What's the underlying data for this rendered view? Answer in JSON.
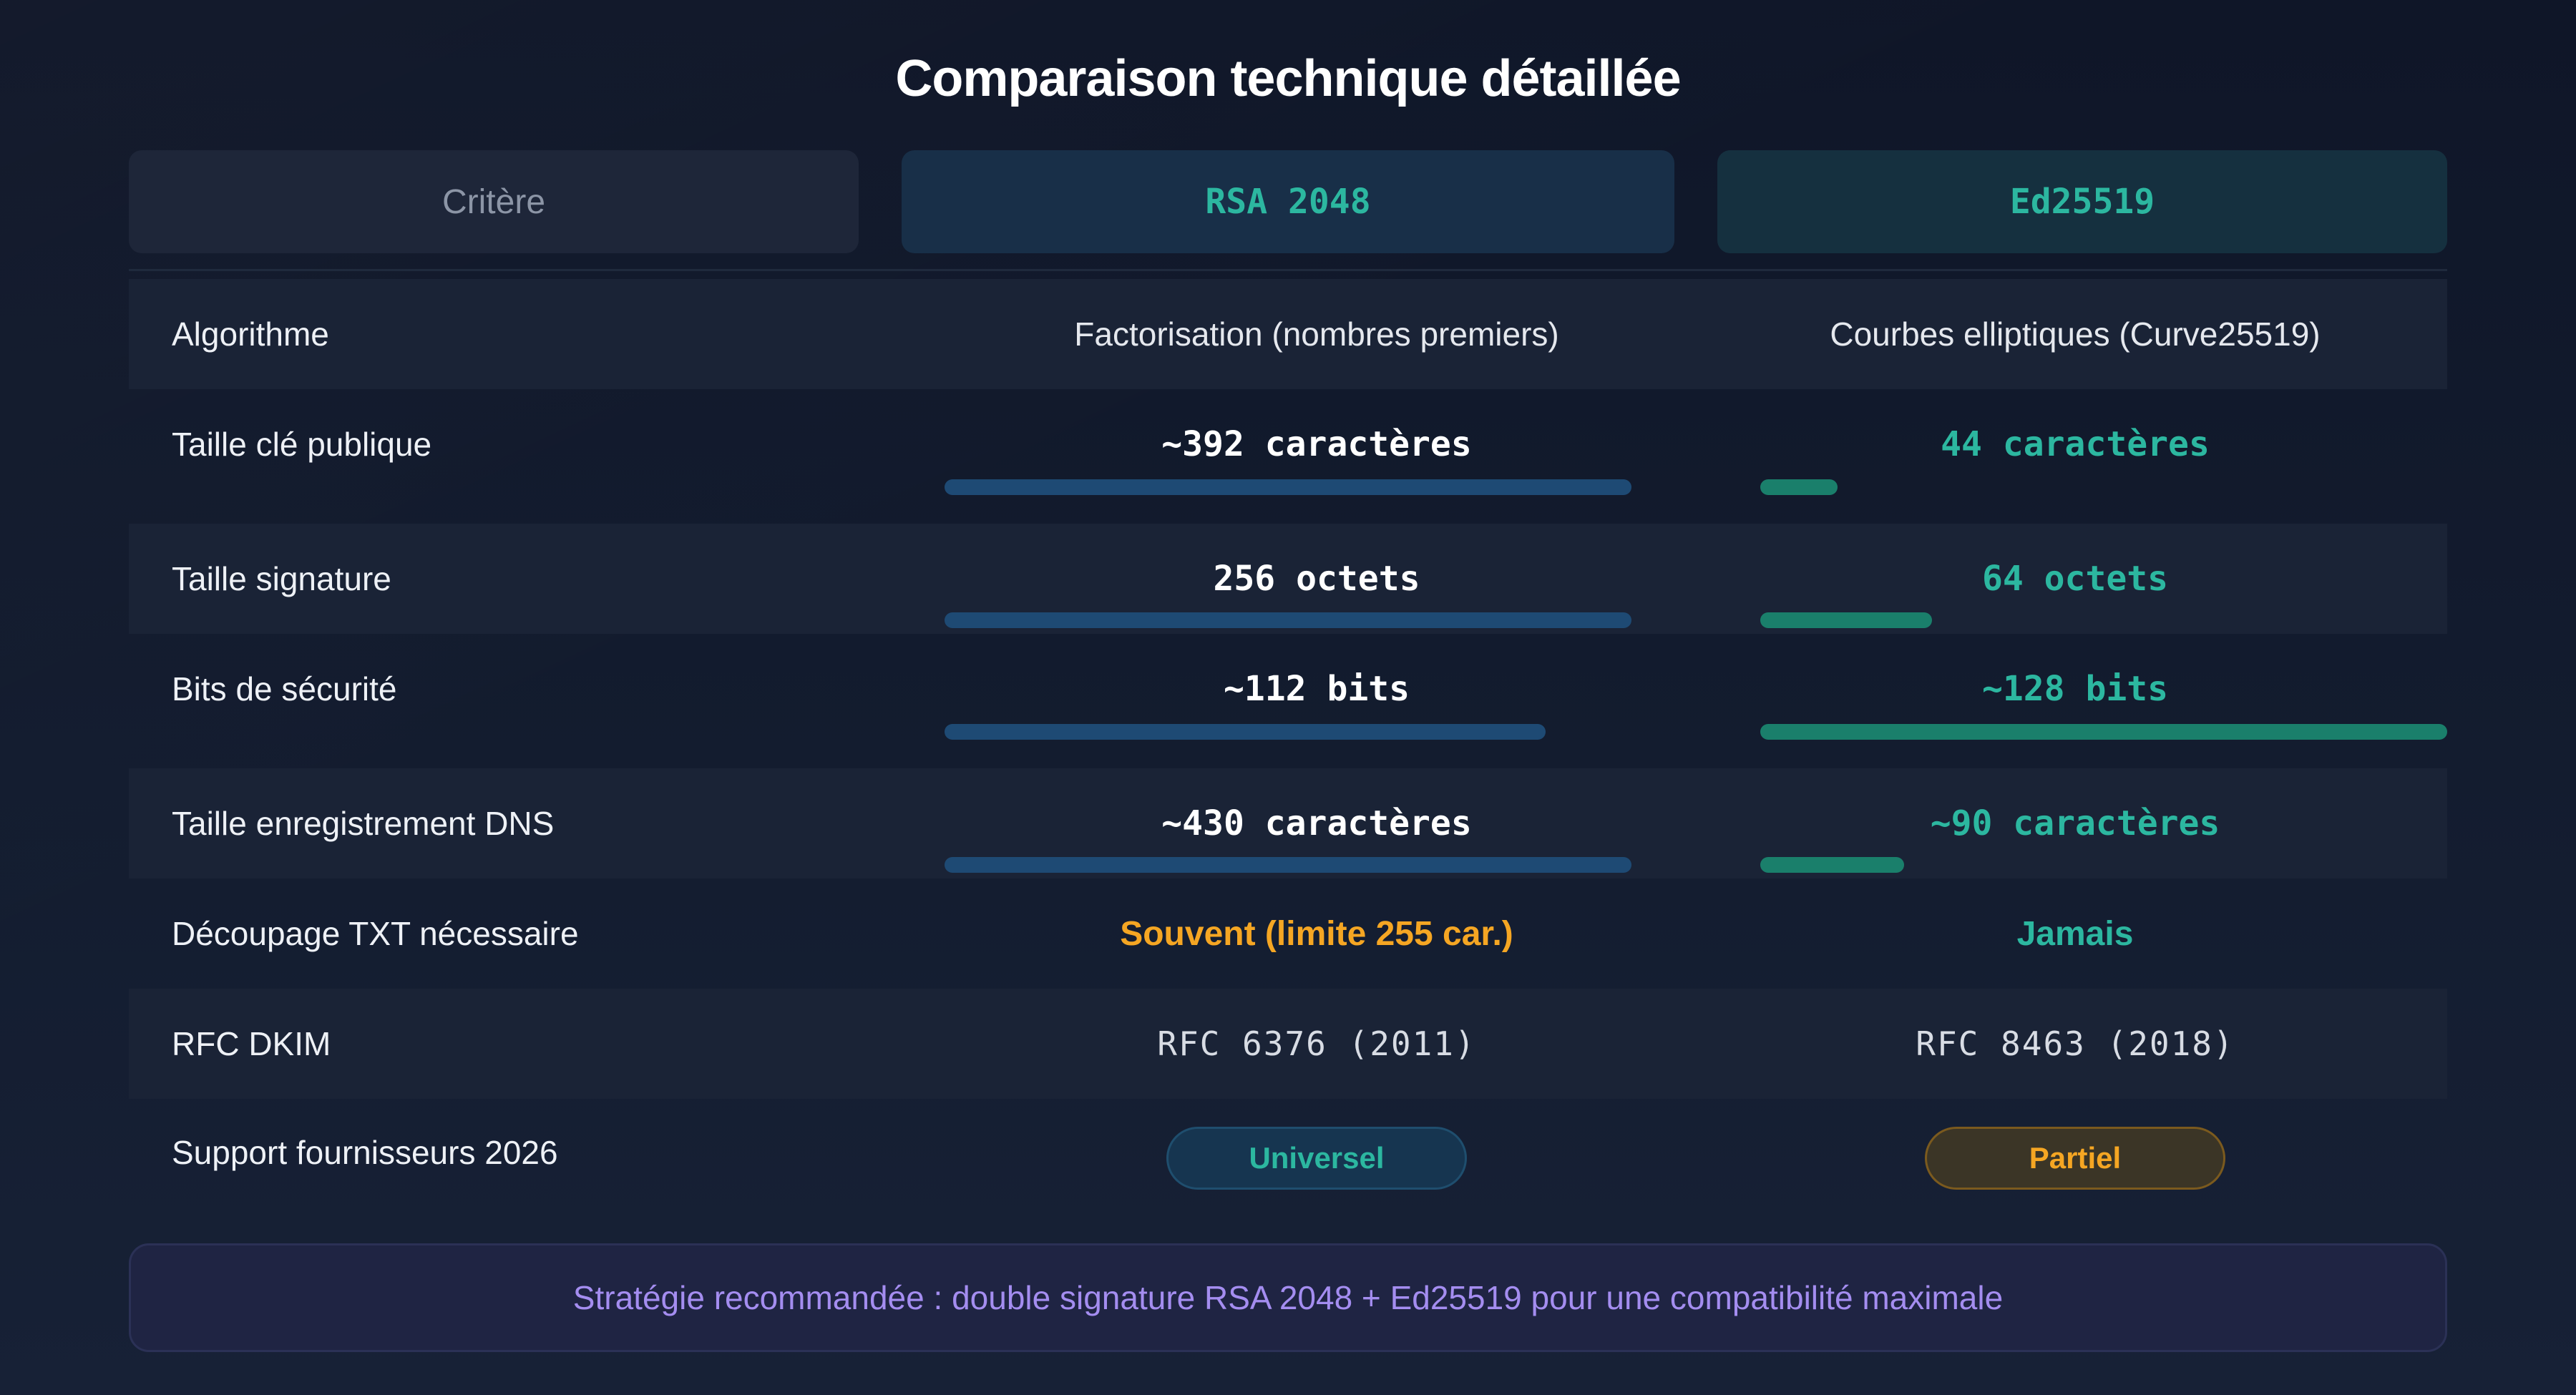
{
  "title": "Comparaison technique détaillée",
  "headers": {
    "criteria": "Critère",
    "rsa": "RSA 2048",
    "ed": "Ed25519"
  },
  "rows": [
    {
      "label": "Algorithme",
      "rsa": "Factorisation (nombres premiers)",
      "ed": "Courbes elliptiques (Curve25519)"
    },
    {
      "label": "Taille clé publique",
      "rsa": "~392 caractères",
      "ed": "44 caractères",
      "rsa_bar_fraction": 1.0,
      "ed_bar_fraction": 0.112
    },
    {
      "label": "Taille signature",
      "rsa": "256 octets",
      "ed": "64 octets",
      "rsa_bar_fraction": 1.0,
      "ed_bar_fraction": 0.25
    },
    {
      "label": "Bits de sécurité",
      "rsa": "~112 bits",
      "ed": "~128 bits",
      "rsa_bar_fraction": 0.875,
      "ed_bar_fraction": 1.0
    },
    {
      "label": "Taille enregistrement DNS",
      "rsa": "~430 caractères",
      "ed": "~90 caractères",
      "rsa_bar_fraction": 1.0,
      "ed_bar_fraction": 0.209
    },
    {
      "label": "Découpage TXT nécessaire",
      "rsa": "Souvent (limite 255 car.)",
      "ed": "Jamais"
    },
    {
      "label": "RFC DKIM",
      "rsa": "RFC 6376 (2011)",
      "ed": "RFC 8463 (2018)"
    },
    {
      "label": "Support fournisseurs 2026",
      "rsa": "Universel",
      "ed": "Partiel"
    }
  ],
  "footer": "Stratégie recommandée : double signature RSA 2048 + Ed25519 pour une compatibilité maximale",
  "colors": {
    "accent_green": "#2cb7a0",
    "accent_orange": "#f5a623",
    "rsa_bar": "#1e4a74",
    "ed_bar": "#1a7f6b",
    "footer_text": "#a48df0"
  }
}
